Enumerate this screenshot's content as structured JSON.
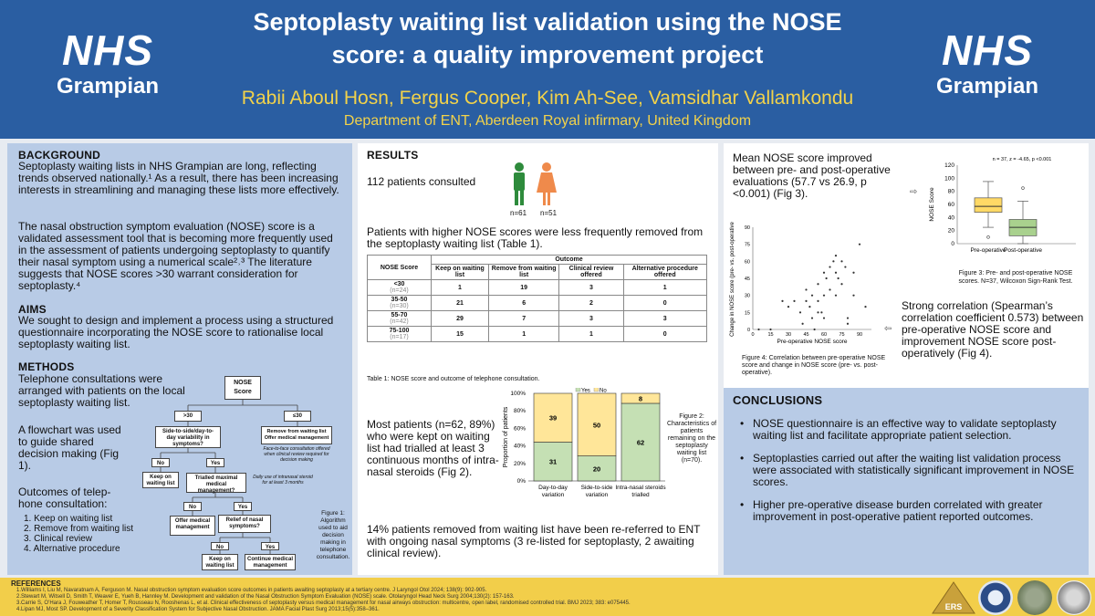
{
  "header": {
    "title_line1": "Septoplasty waiting list validation using the NOSE",
    "title_line2": "score: a quality improvement project",
    "authors": "Rabii Aboul Hosn, Fergus Cooper, Kim Ah-See, Vamsidhar Vallamkondu",
    "department": "Department of ENT, Aberdeen Royal infirmary, United Kingdom",
    "logo_big": "NHS",
    "logo_small": "Grampian"
  },
  "background": {
    "heading": "BACKGROUND",
    "p1": "Septoplasty waiting lists in NHS Grampian are long, reflecting trends observed nationally.¹ As a result, there has been increasing interests in streamlining and managing these lists more effectively.",
    "p2": "The nasal obstruction symptom evaluation (NOSE) score is a validated assessment tool that is becoming more frequently used in the assessment of patients undergoing septoplasty to quantify their nasal symptom using a numerical scale²˒³ The literature suggests that NOSE scores >30 warrant consideration for septoplasty.⁴"
  },
  "aims": {
    "heading": "AIMS",
    "text": "We sought to design and implement a process using a structured questionnaire incorporating the NOSE score to rationalise local septoplasty waiting list."
  },
  "methods": {
    "heading": "METHODS",
    "t1": "Telephone consultations were arranged with patients on the local septoplasty waiting list.",
    "t2": "A flowchart was used to guide shared decision making (Fig 1).",
    "t3": "Outcomes of telep-hone consultation:",
    "outcomes": [
      "1. Keep on waiting list",
      "2. Remove from waiting list",
      "3. Clinical review",
      "4. Alternative procedure"
    ],
    "fig1_caption": "Figure 1: Algorithm used to aid decision making in telephone consultation."
  },
  "flowchart": {
    "root": "NOSE Score",
    "gt30": ">30",
    "le30": "≤30",
    "q1": "Side-to-side/day-to-day variability in symptoms?",
    "remove": "Remove from waiting list Offer medical management",
    "remove_note": "Face-to-face consultation offered when clinical review required for decision making",
    "no": "No",
    "yes": "Yes",
    "keep1": "Keep on waiting list",
    "q2": "Trialled maximal medical management?",
    "q2_note": "Daily use of intranasal steroid for at least 3 months",
    "offer": "Offer medical management",
    "q3": "Relief of nasal symptoms?",
    "keep2": "Keep on waiting list",
    "cont": "Continue medical management"
  },
  "results": {
    "heading": "RESULTS",
    "consulted": "112 patients consulted",
    "male_n": "n=61",
    "female_n": "n=51",
    "table_intro": "Patients with higher NOSE scores were less frequently removed from the septoplasty waiting list (Table 1).",
    "table": {
      "col0": "NOSE Score",
      "outcome": "Outcome",
      "headers": [
        "Keep on waiting list",
        "Remove from waiting list",
        "Clinical review offered",
        "Alternative procedure offered"
      ],
      "rows": [
        {
          "score": "<30",
          "n": "(n=24)",
          "vals": [
            "1",
            "19",
            "3",
            "1"
          ]
        },
        {
          "score": "35-50",
          "n": "(n=30)",
          "vals": [
            "21",
            "6",
            "2",
            "0"
          ]
        },
        {
          "score": "55-70",
          "n": "(n=42)",
          "vals": [
            "29",
            "7",
            "3",
            "3"
          ]
        },
        {
          "score": "75-100",
          "n": "(n=17)",
          "vals": [
            "15",
            "1",
            "1",
            "0"
          ]
        }
      ]
    },
    "table_caption": "Table 1: NOSE score and outcome of telephone consultation.",
    "fig2_text": "Most patients (n=62, 89%) who were kept on waiting list had trialled at least 3 continuous months of intra-nasal steroids (Fig 2).",
    "fig2_caption": "Figure 2: Characteristics of patients remaining on the septoplasty waiting list (n=70).",
    "rereferred": "14% patients removed from waiting list have been re-referred to ENT with ongoing nasal symptoms (3 re-listed for septoplasty, 2 awaiting clinical review)."
  },
  "right_top": {
    "mean_text": "Mean NOSE score improved between pre- and post-operative evaluations (57.7 vs 26.9, p <0.001) (Fig 3).",
    "fig3_caption": "Figure 3: Pre- and post-operative NOSE scores. N=37, Wilcoxon Sign-Rank Test.",
    "corr_text": "Strong correlation (Spearman’s correlation coefficient 0.573) between pre-operative NOSE score and improvement NOSE score post-operatively (Fig 4).",
    "fig4_caption": "Figure 4: Correlation between pre-operative NOSE score and change in NOSE score (pre- vs. post-operative)."
  },
  "conclusions": {
    "heading": "CONCLUSIONS",
    "items": [
      "NOSE questionnaire is an effective way to validate septoplasty waiting list and facilitate appropriate patient selection.",
      "Septoplasties carried out after the waiting list validation process were associated with statistically significant improvement in NOSE scores.",
      "Higher pre-operative disease burden correlated with greater improvement in post-operative patient reported outcomes."
    ]
  },
  "references": {
    "heading": "REFERENCES",
    "items": [
      "1.Williams I, Liu M, Navaratnam A, Ferguson M. Nasal obstruction symptom evaluation score outcomes in patients awaiting septoplasty at a tertiary centre. J Laryngol Otol 2024; 138(9): 902-905.",
      "2.Stewart M, Witsell D, Smith T, Weaver E, Yueh B, Hannley M. Development and validation of the Nasal Obstruction Symptom Evaluation (NOSE) scale. Otolaryngol Head Neck Surg 2004;130(2): 157-163.",
      "3.Carrie S, O’Hara J, Fouweather T, Homer T, Rousseau N, Rooshenas L, et al. Clinical effectiveness of septoplasty versus medical management for nasal airways obstruction: multicentre, open label, randomised controlled trial. BMJ 2023; 383: e075445.",
      "4.Lipan MJ, Most SP. Development of a Severity Classification System for Subjective Nasal Obstruction. JAMA Facial Plast Surg 2013;15(5):358–361."
    ],
    "ers_label": "ERS"
  },
  "chart_data": [
    {
      "type": "bar",
      "stacked": true,
      "categories": [
        "Day-to-day variation",
        "Side-to-side variation",
        "Intra-nasal steroids trialled"
      ],
      "series": [
        {
          "name": "Yes",
          "values": [
            31,
            20,
            62
          ],
          "color": "#c5e0b4"
        },
        {
          "name": "No",
          "values": [
            39,
            50,
            8
          ],
          "color": "#ffe699"
        }
      ],
      "ylabel": "Proportion of patients",
      "yticks": [
        "0%",
        "20%",
        "40%",
        "60%",
        "80%",
        "100%"
      ],
      "legend": "top"
    },
    {
      "type": "box",
      "title": "n = 37, z = -4.65, p <0.001",
      "categories": [
        "Pre-operative",
        "Post-operative"
      ],
      "ylabel": "NOSE Score",
      "ylim": [
        0,
        120
      ],
      "yticks": [
        "0",
        "20",
        "40",
        "60",
        "80",
        "100",
        "120"
      ],
      "boxes": [
        {
          "name": "Pre-operative",
          "min": 25,
          "q1": 48,
          "median": 57,
          "q3": 70,
          "max": 95,
          "outliers": [
            10
          ],
          "color": "#ffd966"
        },
        {
          "name": "Post-operative",
          "min": 0,
          "q1": 12,
          "median": 25,
          "q3": 37,
          "max": 65,
          "outliers": [
            85
          ],
          "color": "#a9d18e"
        }
      ]
    },
    {
      "type": "scatter",
      "xlabel": "Pre-operative NOSE score",
      "ylabel": "Change in NOSE score (pre- vs. post-operative)",
      "xlim": [
        0,
        100
      ],
      "ylim": [
        0,
        90
      ],
      "xticks": [
        "0",
        "15",
        "30",
        "45",
        "60",
        "75",
        "90"
      ],
      "yticks": [
        "0",
        "15",
        "30",
        "45",
        "60",
        "75",
        "90"
      ],
      "points": [
        [
          5,
          0
        ],
        [
          15,
          0
        ],
        [
          25,
          25
        ],
        [
          30,
          20
        ],
        [
          35,
          25
        ],
        [
          40,
          15
        ],
        [
          42,
          5
        ],
        [
          45,
          25
        ],
        [
          48,
          20
        ],
        [
          50,
          10
        ],
        [
          50,
          30
        ],
        [
          52,
          0
        ],
        [
          55,
          25
        ],
        [
          55,
          40
        ],
        [
          58,
          15
        ],
        [
          60,
          30
        ],
        [
          60,
          50
        ],
        [
          62,
          45
        ],
        [
          65,
          35
        ],
        [
          65,
          55
        ],
        [
          68,
          60
        ],
        [
          70,
          50
        ],
        [
          70,
          65
        ],
        [
          72,
          45
        ],
        [
          75,
          40
        ],
        [
          75,
          60
        ],
        [
          78,
          55
        ],
        [
          80,
          5
        ],
        [
          80,
          10
        ],
        [
          85,
          30
        ],
        [
          90,
          75
        ],
        [
          95,
          20
        ],
        [
          60,
          10
        ],
        [
          45,
          35
        ],
        [
          70,
          30
        ],
        [
          55,
          15
        ],
        [
          85,
          50
        ]
      ]
    }
  ]
}
